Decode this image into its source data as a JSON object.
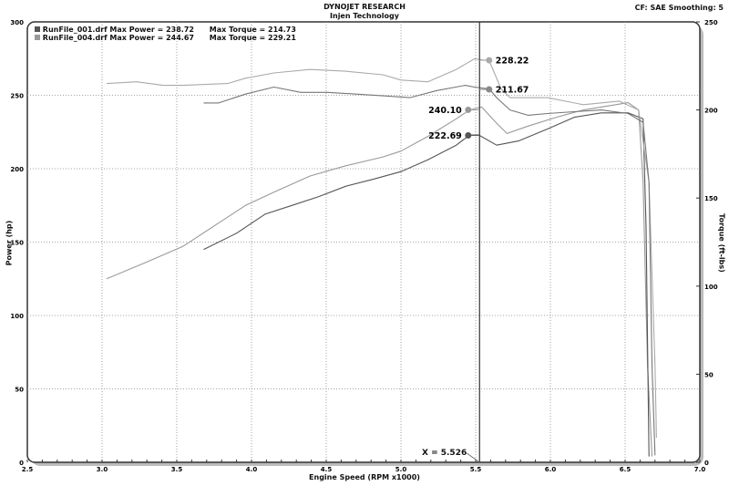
{
  "header": {
    "title": "DYNOJET RESEARCH",
    "subtitle": "Injen Technology",
    "settings": "CF: SAE  Smoothing: 5"
  },
  "legend": [
    {
      "file": "RunFile_001.drf Max Power = 238.72",
      "torque": "Max Torque = 214.73",
      "color": "#555555"
    },
    {
      "file": "RunFile_004.drf Max Power = 244.67",
      "torque": "Max Torque = 229.21",
      "color": "#999999"
    }
  ],
  "cursor": {
    "label": "X = 5.526",
    "x": 5.526
  },
  "chart_data": {
    "type": "line",
    "xlabel": "Engine Speed (RPM x1000)",
    "ylabel": "Power (hp)",
    "y2label": "Torque (ft-lbs)",
    "xlim": [
      2.5,
      7.0
    ],
    "ylim": [
      0,
      300
    ],
    "y2lim": [
      0,
      250
    ],
    "xticks": [
      "2.5",
      "3.0",
      "3.5",
      "4.0",
      "4.5",
      "5.0",
      "5.5",
      "6.0",
      "6.5",
      "7.0"
    ],
    "yticks": [
      "0",
      "50",
      "100",
      "150",
      "200",
      "250",
      "300"
    ],
    "y2ticks": [
      "0",
      "50",
      "100",
      "150",
      "200",
      "250"
    ],
    "grid": true,
    "legend_position": "top-left",
    "series": [
      {
        "name": "RunFile_004.drf Power",
        "axis": "left",
        "color": "#999999",
        "x": [
          3.03,
          3.29,
          3.54,
          3.78,
          3.96,
          4.15,
          4.39,
          4.63,
          4.88,
          5.0,
          5.18,
          5.37,
          5.46,
          5.54,
          5.64,
          5.71,
          5.85,
          6.04,
          6.22,
          6.4,
          6.52,
          6.59,
          6.62,
          6.65,
          6.68
        ],
        "y": [
          125,
          136,
          147,
          163,
          175,
          184,
          195,
          202,
          208,
          212,
          222,
          234,
          240,
          242,
          231,
          224,
          229,
          235,
          240,
          243,
          245,
          240,
          191,
          66,
          4
        ]
      },
      {
        "name": "RunFile_001.drf Power",
        "axis": "left",
        "color": "#555555",
        "x": [
          3.68,
          3.9,
          4.09,
          4.27,
          4.45,
          4.63,
          4.82,
          5.0,
          5.18,
          5.37,
          5.46,
          5.52,
          5.64,
          5.79,
          5.98,
          6.16,
          6.34,
          6.52,
          6.62,
          6.64,
          6.66
        ],
        "y": [
          145,
          156,
          169,
          175,
          181,
          188,
          193,
          198,
          206,
          216,
          223,
          223,
          216,
          219,
          227,
          235,
          238,
          238,
          234,
          160,
          4
        ]
      },
      {
        "name": "RunFile_004.drf Torque",
        "axis": "right",
        "color": "#aaaaaa",
        "x": [
          3.03,
          3.23,
          3.41,
          3.54,
          3.84,
          3.96,
          4.15,
          4.39,
          4.63,
          4.88,
          5.0,
          5.18,
          5.37,
          5.49,
          5.59,
          5.67,
          5.73,
          5.98,
          6.22,
          6.46,
          6.59,
          6.66,
          6.7,
          6.71
        ],
        "y": [
          215,
          216,
          214,
          214,
          215,
          218,
          221,
          223,
          222,
          220,
          217,
          216,
          223,
          229,
          228,
          212,
          207,
          207,
          203,
          205,
          200,
          159,
          55,
          14
        ]
      },
      {
        "name": "RunFile_001.drf Torque",
        "axis": "right",
        "color": "#777777",
        "x": [
          3.68,
          3.78,
          3.96,
          4.15,
          4.33,
          4.51,
          4.7,
          4.88,
          5.06,
          5.24,
          5.43,
          5.49,
          5.59,
          5.64,
          5.73,
          5.85,
          5.98,
          6.16,
          6.34,
          6.52,
          6.62,
          6.66,
          6.68,
          6.7
        ],
        "y": [
          204,
          204,
          209,
          213,
          210,
          210,
          209,
          208,
          207,
          211,
          214,
          213,
          212,
          207,
          200,
          197,
          198,
          199,
          200,
          198,
          193,
          159,
          55,
          4
        ]
      }
    ],
    "annotations": [
      {
        "label": "228.22",
        "x": 5.59,
        "y": 228.22,
        "axis": "right",
        "color": "#aaaaaa",
        "side": "right"
      },
      {
        "label": "211.67",
        "x": 5.59,
        "y": 211.67,
        "axis": "right",
        "color": "#888888",
        "side": "right"
      },
      {
        "label": "240.10",
        "x": 5.45,
        "y": 240.1,
        "axis": "left",
        "color": "#999999",
        "side": "left"
      },
      {
        "label": "222.69",
        "x": 5.45,
        "y": 222.69,
        "axis": "left",
        "color": "#555555",
        "side": "left"
      }
    ]
  }
}
